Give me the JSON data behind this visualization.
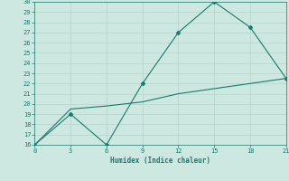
{
  "xlabel": "Humidex (Indice chaleur)",
  "ylabel": "",
  "background_color": "#cce8e0",
  "grid_color": "#b8d8d0",
  "line_color": "#1a7a6a",
  "xlim": [
    0,
    21
  ],
  "ylim": [
    16,
    30
  ],
  "xticks": [
    0,
    3,
    6,
    9,
    12,
    15,
    18,
    21
  ],
  "yticks": [
    16,
    17,
    18,
    19,
    20,
    21,
    22,
    23,
    24,
    25,
    26,
    27,
    28,
    29,
    30
  ],
  "line1_x": [
    0,
    3,
    6,
    9,
    12,
    15,
    18,
    21
  ],
  "line1_y": [
    16,
    19,
    16,
    22,
    27,
    30,
    27.5,
    22.5
  ],
  "line2_x": [
    0,
    3,
    6,
    9,
    12,
    15,
    18,
    21
  ],
  "line2_y": [
    16,
    19.5,
    19.8,
    20.2,
    21.0,
    21.5,
    22.0,
    22.5
  ]
}
